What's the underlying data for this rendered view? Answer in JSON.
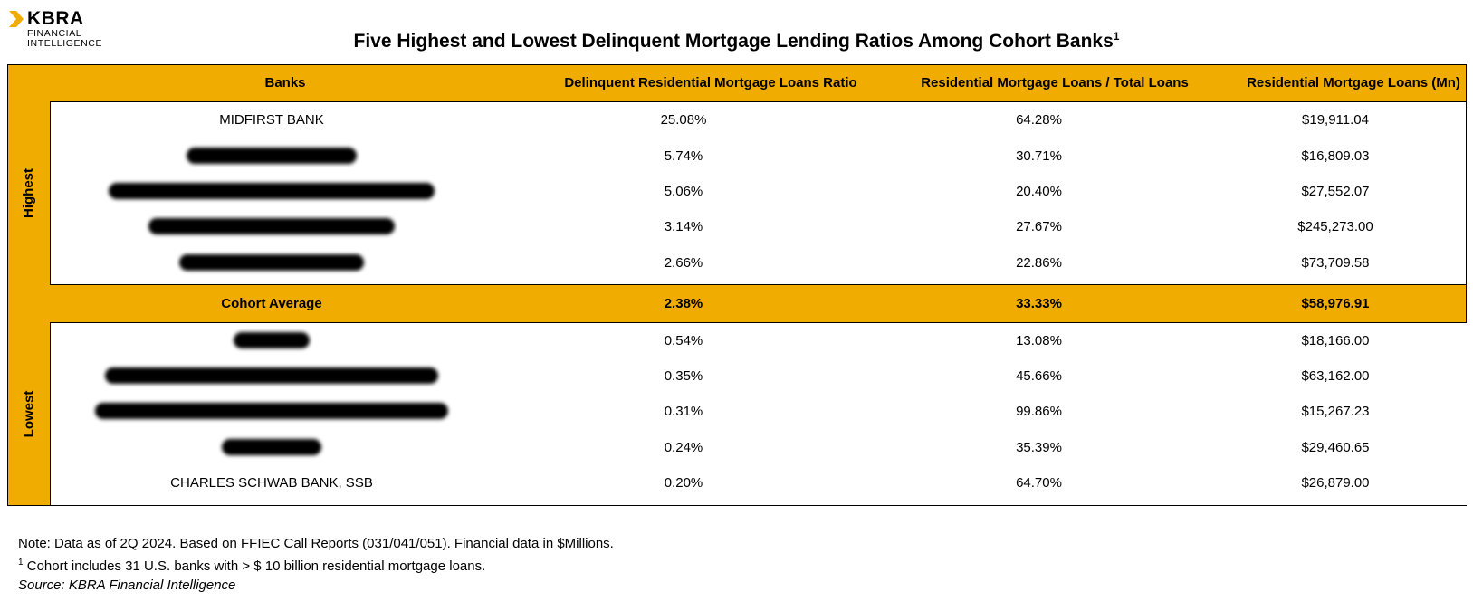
{
  "logo": {
    "brand": "KBRA",
    "sub_line1": "FINANCIAL",
    "sub_line2": "INTELLIGENCE",
    "accent_color": "#F0AC00"
  },
  "title": {
    "text": "Five Highest and Lowest Delinquent Mortgage Lending Ratios Among Cohort Banks",
    "footnote_marker": "1"
  },
  "chart_data": {
    "type": "table",
    "title": "Five Highest and Lowest Delinquent Mortgage Lending Ratios Among Cohort Banks",
    "columns": [
      "Banks",
      "Delinquent Residential Mortgage Loans Ratio",
      "Residential Mortgage Loans / Total Loans",
      "Residential Mortgage Loans (Mn)"
    ],
    "groups": [
      {
        "label": "Highest",
        "rows": [
          {
            "bank": "MIDFIRST BANK",
            "redacted": false,
            "ratio": "25.08%",
            "share": "64.28%",
            "loans": "$19,911.04"
          },
          {
            "bank": "",
            "redacted": true,
            "ratio": "5.74%",
            "share": "30.71%",
            "loans": "$16,809.03"
          },
          {
            "bank": "",
            "redacted": true,
            "ratio": "5.06%",
            "share": "20.40%",
            "loans": "$27,552.07"
          },
          {
            "bank": "",
            "redacted": true,
            "ratio": "3.14%",
            "share": "27.67%",
            "loans": "$245,273.00"
          },
          {
            "bank": "",
            "redacted": true,
            "ratio": "2.66%",
            "share": "22.86%",
            "loans": "$73,709.58"
          }
        ]
      },
      {
        "label": "Lowest",
        "rows": [
          {
            "bank": "",
            "redacted": true,
            "ratio": "0.54%",
            "share": "13.08%",
            "loans": "$18,166.00"
          },
          {
            "bank": "",
            "redacted": true,
            "ratio": "0.35%",
            "share": "45.66%",
            "loans": "$63,162.00"
          },
          {
            "bank": "",
            "redacted": true,
            "ratio": "0.31%",
            "share": "99.86%",
            "loans": "$15,267.23"
          },
          {
            "bank": "",
            "redacted": true,
            "ratio": "0.24%",
            "share": "35.39%",
            "loans": "$29,460.65"
          },
          {
            "bank": "CHARLES SCHWAB BANK, SSB",
            "redacted": false,
            "ratio": "0.20%",
            "share": "64.70%",
            "loans": "$26,879.00"
          }
        ]
      }
    ],
    "average": {
      "label": "Cohort Average",
      "ratio": "2.38%",
      "share": "33.33%",
      "loans": "$58,976.91"
    },
    "colors": {
      "header_fill": "#F0AC00",
      "body_fill": "#FFFFFF",
      "border": "#000000"
    }
  },
  "notes": {
    "line1": "Note: Data as of 2Q 2024. Based on FFIEC Call Reports (031/041/051). Financial data in $Millions.",
    "footnote_marker": "1",
    "line2": "Cohort includes 31 U.S. banks with > $ 10 billion residential mortgage loans.",
    "source": "Source: KBRA Financial Intelligence"
  }
}
